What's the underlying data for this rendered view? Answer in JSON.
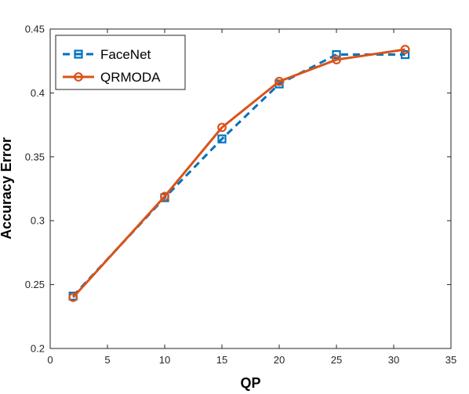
{
  "chart_data": {
    "type": "line",
    "xlabel": "QP",
    "ylabel": "Accuracy Error",
    "xlim": [
      0,
      35
    ],
    "ylim": [
      0.2,
      0.45
    ],
    "xticks": [
      0,
      5,
      10,
      15,
      20,
      25,
      30,
      35
    ],
    "yticks": [
      0.2,
      0.25,
      0.3,
      0.35,
      0.4,
      0.45
    ],
    "x": [
      2,
      10,
      15,
      20,
      25,
      31
    ],
    "grid": false,
    "legend_position": "top-left",
    "series": [
      {
        "name": "FaceNet",
        "values": [
          0.241,
          0.318,
          0.364,
          0.407,
          0.43,
          0.43
        ],
        "color": "#0072BD",
        "line_style": "dashed",
        "marker": "square"
      },
      {
        "name": "QRMODA",
        "values": [
          0.24,
          0.319,
          0.373,
          0.409,
          0.426,
          0.434
        ],
        "color": "#D95319",
        "line_style": "solid",
        "marker": "circle"
      }
    ]
  }
}
